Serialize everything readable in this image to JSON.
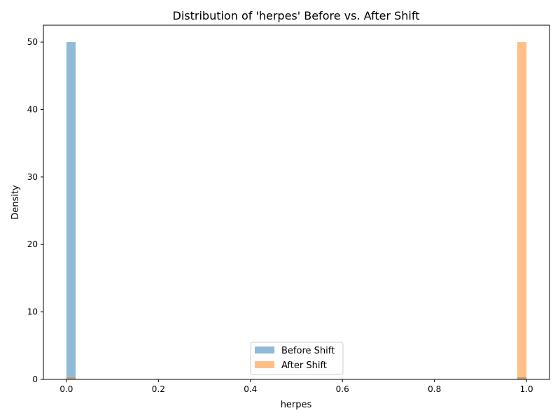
{
  "chart_data": {
    "type": "bar",
    "title": "Distribution of 'herpes' Before vs. After Shift",
    "xlabel": "herpes",
    "ylabel": "Density",
    "xlim": [
      -0.05,
      1.05
    ],
    "ylim": [
      0,
      52.5
    ],
    "xticks": [
      0.0,
      0.2,
      0.4,
      0.6,
      0.8,
      1.0
    ],
    "xtick_labels": [
      "0.0",
      "0.2",
      "0.4",
      "0.6",
      "0.8",
      "1.0"
    ],
    "yticks": [
      0,
      10,
      20,
      30,
      40,
      50
    ],
    "ytick_labels": [
      "0",
      "10",
      "20",
      "30",
      "40",
      "50"
    ],
    "grid": false,
    "legend_position": "bottom-center",
    "series": [
      {
        "name": "Before Shift",
        "color": "#1f77b4",
        "bins": [
          {
            "x0": 0.0,
            "x1": 0.02,
            "value": 50
          },
          {
            "x0": 0.98,
            "x1": 1.0,
            "value": 0.3
          }
        ]
      },
      {
        "name": "After Shift",
        "color": "#ff7f0e",
        "bins": [
          {
            "x0": 0.0,
            "x1": 0.02,
            "value": 0.3
          },
          {
            "x0": 0.98,
            "x1": 1.0,
            "value": 50
          }
        ]
      }
    ]
  }
}
